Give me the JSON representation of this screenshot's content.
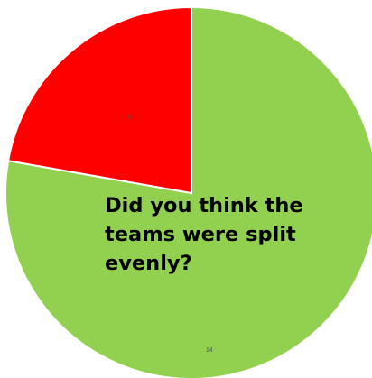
{
  "chart_data": {
    "type": "pie",
    "title": "Did you think the teams were split evenly?",
    "categories": [
      "",
      ""
    ],
    "values": [
      14,
      4
    ],
    "data_labels": [
      "14",
      "4"
    ],
    "colors": [
      "#92d050",
      "#ff0000"
    ],
    "start_angle": "12 o'clock, clockwise",
    "legend": "none"
  },
  "title_lines": "Did you think the\nteams were split\nevenly?"
}
